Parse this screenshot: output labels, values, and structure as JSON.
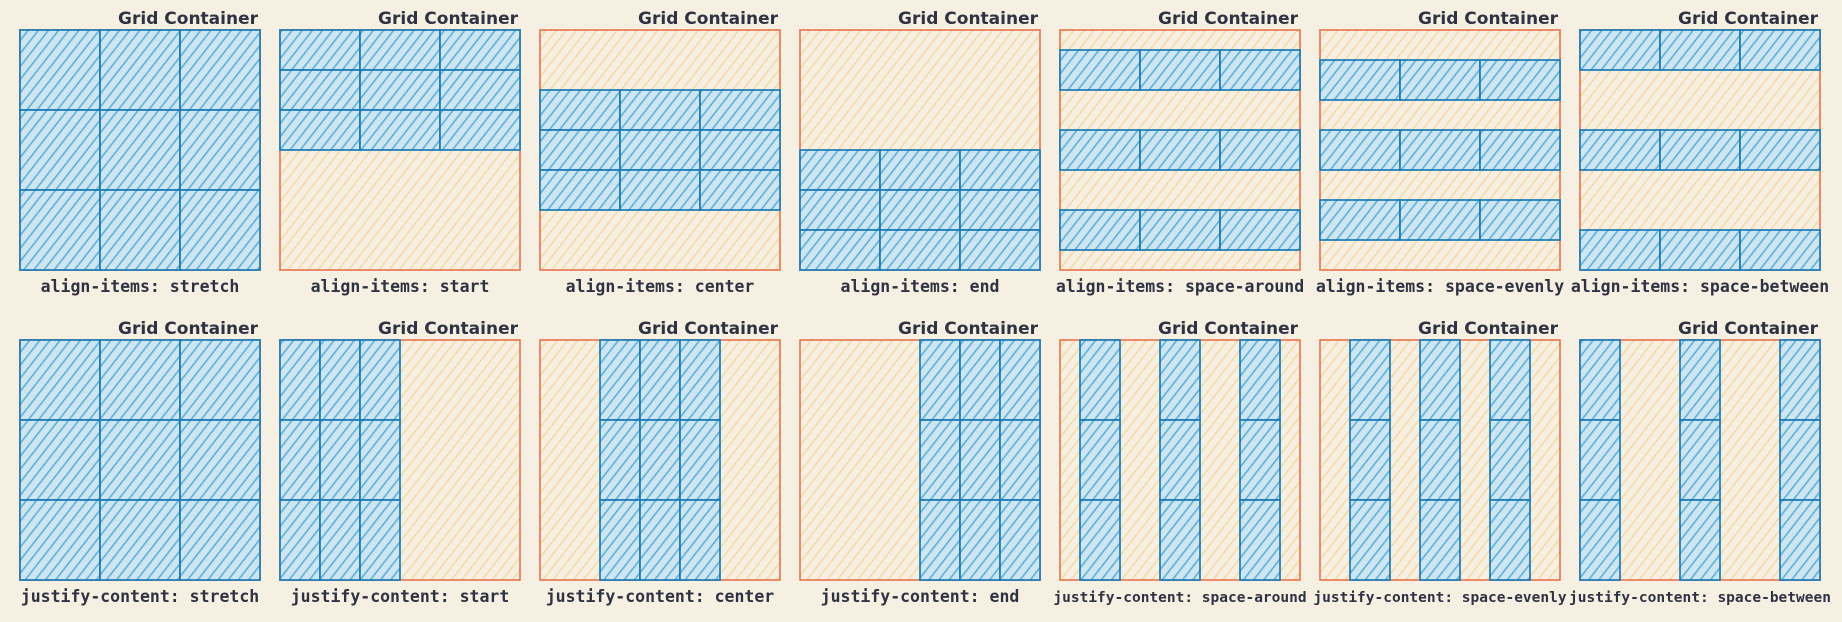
{
  "colors": {
    "background": "#f5f0e1",
    "container_fill": "#f9d9a8",
    "container_stroke": "#e8734a",
    "cell_fill": "#5cb5e0",
    "cell_stroke": "#1a7ab5",
    "text": "#2f3242"
  },
  "container_title": "Grid Container",
  "rows": [
    {
      "axis": "rows",
      "panels": [
        {
          "mode": "stretch",
          "caption": "align-items: stretch"
        },
        {
          "mode": "start",
          "caption": "align-items: start"
        },
        {
          "mode": "center",
          "caption": "align-items: center"
        },
        {
          "mode": "end",
          "caption": "align-items: end"
        },
        {
          "mode": "space-around",
          "caption": "align-items: space-around"
        },
        {
          "mode": "space-evenly",
          "caption": "align-items: space-evenly"
        },
        {
          "mode": "space-between",
          "caption": "align-items: space-between"
        }
      ]
    },
    {
      "axis": "columns",
      "panels": [
        {
          "mode": "stretch",
          "caption": "justify-content: stretch"
        },
        {
          "mode": "start",
          "caption": "justify-content: start"
        },
        {
          "mode": "center",
          "caption": "justify-content: center"
        },
        {
          "mode": "end",
          "caption": "justify-content: end"
        },
        {
          "mode": "space-around",
          "caption": "justify-content: space-around"
        },
        {
          "mode": "space-evenly",
          "caption": "justify-content: space-evenly"
        },
        {
          "mode": "space-between",
          "caption": "justify-content: space-between"
        }
      ]
    }
  ]
}
